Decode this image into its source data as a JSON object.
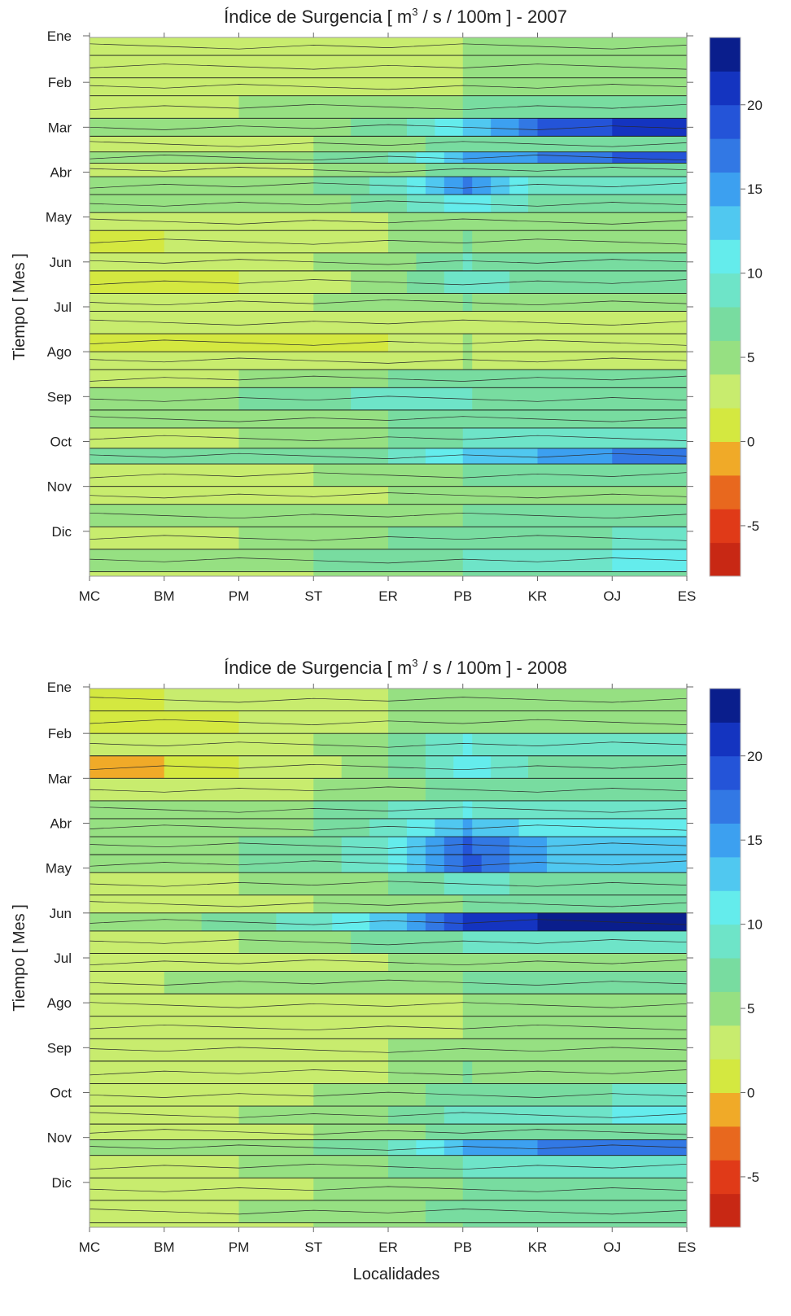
{
  "chart_data": [
    {
      "type": "heatmap",
      "title_prefix": "Índice de Surgencia  [ m",
      "title_sup": "3",
      "title_suffix": " / s / 100m ] - 2007",
      "ylabel": "Tiempo [ Mes ]",
      "xlabel": "",
      "x_categories": [
        "MC",
        "BM",
        "PM",
        "ST",
        "ER",
        "PB",
        "KR",
        "OJ",
        "ES"
      ],
      "y_categories": [
        "Ene",
        "Feb",
        "Mar",
        "Abr",
        "May",
        "Jun",
        "Jul",
        "Ago",
        "Sep",
        "Oct",
        "Nov",
        "Dic"
      ],
      "colorbar_ticks": [
        20,
        15,
        10,
        5,
        0,
        -5
      ],
      "colorbar_range": [
        -8,
        24
      ],
      "colorbar_step": 2,
      "grid": false,
      "bands": [
        {
          "month": 0.0,
          "values": [
            3,
            3,
            3,
            3,
            3,
            4,
            4,
            4,
            4
          ]
        },
        {
          "month": 0.4,
          "values": [
            2,
            2,
            2,
            3,
            3,
            4,
            4,
            4,
            4
          ]
        },
        {
          "month": 0.9,
          "values": [
            3,
            3,
            3,
            3,
            3,
            4,
            4,
            4,
            4
          ]
        },
        {
          "month": 1.3,
          "values": [
            3,
            3,
            4,
            4,
            5,
            6,
            7,
            7,
            7
          ]
        },
        {
          "month": 1.8,
          "values": [
            4,
            4,
            4,
            5,
            7,
            12,
            18,
            20,
            20
          ]
        },
        {
          "month": 2.2,
          "values": [
            3,
            3,
            3,
            4,
            5,
            7,
            7,
            7,
            7
          ]
        },
        {
          "month": 2.55,
          "values": [
            4,
            4,
            5,
            6,
            8,
            14,
            16,
            18,
            18
          ]
        },
        {
          "month": 2.8,
          "values": [
            3,
            3,
            3,
            4,
            5,
            7,
            7,
            7,
            7
          ]
        },
        {
          "month": 3.1,
          "values": [
            4,
            4,
            5,
            6,
            9,
            16,
            9,
            9,
            9
          ]
        },
        {
          "month": 3.5,
          "values": [
            4,
            4,
            4,
            5,
            7,
            11,
            7,
            7,
            7
          ]
        },
        {
          "month": 3.9,
          "values": [
            2,
            2,
            2,
            3,
            4,
            5,
            5,
            5,
            5
          ]
        },
        {
          "month": 4.3,
          "values": [
            1,
            2,
            2,
            3,
            4,
            6,
            5,
            5,
            5
          ]
        },
        {
          "month": 4.8,
          "values": [
            2,
            2,
            3,
            4,
            5,
            8,
            6,
            6,
            6
          ]
        },
        {
          "month": 5.2,
          "values": [
            1,
            1,
            2,
            3,
            5,
            9,
            7,
            7,
            7
          ]
        },
        {
          "month": 5.7,
          "values": [
            3,
            3,
            3,
            4,
            5,
            6,
            5,
            5,
            5
          ]
        },
        {
          "month": 6.1,
          "values": [
            2,
            2,
            2,
            2,
            2,
            3,
            3,
            3,
            3
          ]
        },
        {
          "month": 6.6,
          "values": [
            1,
            1,
            1,
            1,
            2,
            4,
            2,
            2,
            2
          ]
        },
        {
          "month": 7.0,
          "values": [
            2,
            2,
            2,
            2,
            3,
            4,
            3,
            3,
            3
          ]
        },
        {
          "month": 7.4,
          "values": [
            3,
            3,
            4,
            5,
            6,
            6,
            6,
            6,
            6
          ]
        },
        {
          "month": 7.8,
          "values": [
            5,
            5,
            6,
            7,
            9,
            8,
            7,
            6,
            6
          ]
        },
        {
          "month": 8.3,
          "values": [
            4,
            4,
            4,
            5,
            6,
            7,
            7,
            7,
            7
          ]
        },
        {
          "month": 8.7,
          "values": [
            3,
            3,
            4,
            5,
            6,
            8,
            9,
            9,
            9
          ]
        },
        {
          "month": 9.15,
          "values": [
            6,
            6,
            7,
            7,
            8,
            12,
            14,
            16,
            16
          ]
        },
        {
          "month": 9.5,
          "values": [
            3,
            3,
            3,
            4,
            5,
            6,
            6,
            6,
            6
          ]
        },
        {
          "month": 10.0,
          "values": [
            3,
            3,
            3,
            3,
            4,
            5,
            5,
            5,
            5
          ]
        },
        {
          "month": 10.4,
          "values": [
            4,
            4,
            4,
            4,
            5,
            6,
            6,
            6,
            6
          ]
        },
        {
          "month": 10.9,
          "values": [
            3,
            3,
            4,
            5,
            6,
            7,
            7,
            8,
            8
          ]
        },
        {
          "month": 11.4,
          "values": [
            4,
            4,
            5,
            6,
            7,
            8,
            9,
            10,
            10
          ]
        },
        {
          "month": 11.9,
          "values": [
            3,
            3,
            3,
            4,
            5,
            6,
            7,
            7,
            7
          ]
        }
      ]
    },
    {
      "type": "heatmap",
      "title_prefix": "Índice de Surgencia  [ m",
      "title_sup": "3",
      "title_suffix": " / s / 100m ] - 2008",
      "ylabel": "Tiempo [ Mes ]",
      "xlabel": "Localidades",
      "x_categories": [
        "MC",
        "BM",
        "PM",
        "ST",
        "ER",
        "PB",
        "KR",
        "OJ",
        "ES"
      ],
      "y_categories": [
        "Ene",
        "Feb",
        "Mar",
        "Abr",
        "May",
        "Jun",
        "Jul",
        "Ago",
        "Sep",
        "Oct",
        "Nov",
        "Dic"
      ],
      "colorbar_ticks": [
        20,
        15,
        10,
        5,
        0,
        -5
      ],
      "colorbar_range": [
        -8,
        24
      ],
      "colorbar_step": 2,
      "grid": false,
      "bands": [
        {
          "month": 0.0,
          "values": [
            1,
            2,
            3,
            3,
            4,
            4,
            4,
            4,
            4
          ]
        },
        {
          "month": 0.5,
          "values": [
            0,
            1,
            2,
            3,
            4,
            5,
            5,
            5,
            5
          ]
        },
        {
          "month": 1.0,
          "values": [
            3,
            3,
            3,
            4,
            6,
            10,
            9,
            9,
            9
          ]
        },
        {
          "month": 1.5,
          "values": [
            -1,
            0,
            2,
            3,
            6,
            11,
            7,
            7,
            7
          ]
        },
        {
          "month": 2.0,
          "values": [
            3,
            3,
            3,
            4,
            5,
            7,
            6,
            6,
            6
          ]
        },
        {
          "month": 2.5,
          "values": [
            4,
            4,
            5,
            6,
            8,
            10,
            8,
            8,
            8
          ]
        },
        {
          "month": 2.9,
          "values": [
            4,
            4,
            5,
            6,
            9,
            14,
            11,
            10,
            10
          ]
        },
        {
          "month": 3.3,
          "values": [
            4,
            5,
            6,
            7,
            10,
            18,
            14,
            12,
            12
          ]
        },
        {
          "month": 3.7,
          "values": [
            4,
            5,
            6,
            7,
            10,
            19,
            14,
            13,
            13
          ]
        },
        {
          "month": 4.1,
          "values": [
            3,
            3,
            4,
            5,
            6,
            9,
            7,
            7,
            7
          ]
        },
        {
          "month": 4.6,
          "values": [
            3,
            3,
            3,
            4,
            5,
            6,
            6,
            6,
            6
          ]
        },
        {
          "month": 5.0,
          "values": [
            4,
            5,
            7,
            9,
            13,
            20,
            22,
            22,
            22
          ]
        },
        {
          "month": 5.4,
          "values": [
            3,
            3,
            4,
            5,
            7,
            8,
            8,
            8,
            8
          ]
        },
        {
          "month": 5.9,
          "values": [
            3,
            3,
            3,
            3,
            4,
            5,
            5,
            5,
            5
          ]
        },
        {
          "month": 6.3,
          "values": [
            3,
            4,
            4,
            5,
            5,
            6,
            6,
            6,
            6
          ]
        },
        {
          "month": 6.8,
          "values": [
            2,
            2,
            2,
            3,
            3,
            4,
            4,
            4,
            4
          ]
        },
        {
          "month": 7.3,
          "values": [
            2,
            2,
            2,
            3,
            3,
            4,
            4,
            4,
            4
          ]
        },
        {
          "month": 7.8,
          "values": [
            3,
            3,
            3,
            3,
            4,
            5,
            5,
            5,
            5
          ]
        },
        {
          "month": 8.3,
          "values": [
            3,
            3,
            3,
            3,
            4,
            6,
            5,
            5,
            5
          ]
        },
        {
          "month": 8.8,
          "values": [
            3,
            3,
            3,
            4,
            5,
            7,
            7,
            8,
            8
          ]
        },
        {
          "month": 9.3,
          "values": [
            3,
            3,
            4,
            5,
            6,
            9,
            9,
            10,
            10
          ]
        },
        {
          "month": 9.7,
          "values": [
            3,
            3,
            3,
            4,
            5,
            7,
            7,
            7,
            7
          ]
        },
        {
          "month": 10.05,
          "values": [
            4,
            4,
            5,
            6,
            8,
            14,
            16,
            16,
            16
          ]
        },
        {
          "month": 10.4,
          "values": [
            3,
            3,
            4,
            5,
            6,
            8,
            8,
            8,
            8
          ]
        },
        {
          "month": 10.9,
          "values": [
            3,
            3,
            3,
            4,
            5,
            6,
            6,
            6,
            6
          ]
        },
        {
          "month": 11.4,
          "values": [
            3,
            3,
            4,
            4,
            5,
            7,
            6,
            6,
            6
          ]
        },
        {
          "month": 11.9,
          "values": [
            3,
            3,
            3,
            4,
            5,
            6,
            6,
            6,
            6
          ]
        }
      ]
    }
  ]
}
